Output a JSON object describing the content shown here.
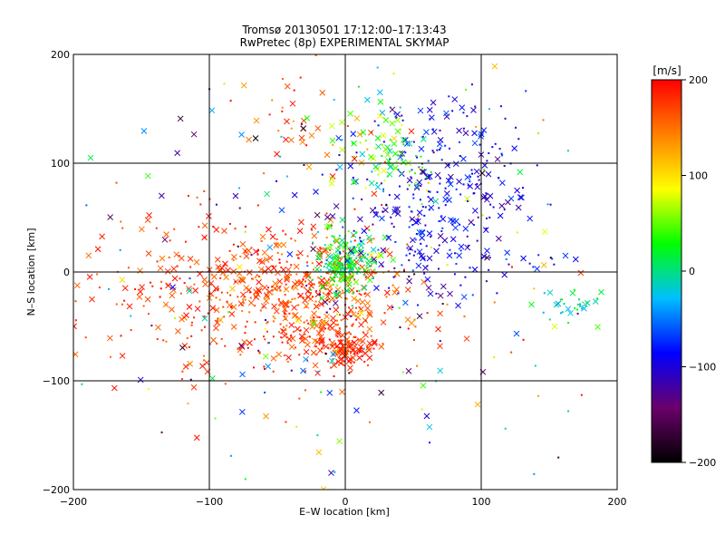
{
  "chart_data": {
    "type": "scatter",
    "title": "Tromsø 20130501 17:12:00–17:13:43",
    "subtitle": "RwPretec (8p) EXPERIMENTAL SKYMAP",
    "xlabel": "E–W location [km]",
    "ylabel": "N–S location [km]",
    "xlim": [
      -200,
      200
    ],
    "ylim": [
      -200,
      200
    ],
    "xticks": [
      "-200",
      "-100",
      "0",
      "100",
      "200"
    ],
    "yticks": [
      "-200",
      "-100",
      "0",
      "100",
      "200"
    ],
    "grid": true,
    "grid_lines": [
      -100,
      0,
      100
    ],
    "colorbar": {
      "unit": "[m/s]",
      "range": [
        -200,
        200
      ],
      "ticks": [
        "200",
        "100",
        "0",
        "-100",
        "-200"
      ],
      "colormap": [
        "#000000",
        "#6a006a",
        "#0000ff",
        "#00bfff",
        "#00ff00",
        "#ffff00",
        "#ff8000",
        "#ff0000"
      ]
    },
    "markers": {
      "cross": "×",
      "dot": "·"
    },
    "clusters": [
      {
        "cx": -30,
        "cy": -20,
        "sx": 40,
        "sy": 30,
        "n": 520,
        "vmin": 140,
        "vmax": 200
      },
      {
        "cx": -120,
        "cy": -20,
        "sx": 50,
        "sy": 40,
        "n": 160,
        "vmin": 150,
        "vmax": 200
      },
      {
        "cx": 0,
        "cy": -70,
        "sx": 12,
        "sy": 10,
        "n": 120,
        "vmin": 160,
        "vmax": 200
      },
      {
        "cx": 0,
        "cy": 10,
        "sx": 12,
        "sy": 15,
        "n": 170,
        "vmin": -20,
        "vmax": 60
      },
      {
        "cx": 65,
        "cy": 50,
        "sx": 35,
        "sy": 40,
        "n": 260,
        "vmin": -130,
        "vmax": -60
      },
      {
        "cx": 80,
        "cy": 110,
        "sx": 25,
        "sy": 25,
        "n": 80,
        "vmin": -120,
        "vmax": -60
      },
      {
        "cx": 30,
        "cy": 110,
        "sx": 20,
        "sy": 25,
        "n": 90,
        "vmin": -40,
        "vmax": 90
      },
      {
        "cx": 165,
        "cy": -30,
        "sx": 12,
        "sy": 10,
        "n": 30,
        "vmin": -40,
        "vmax": 30
      },
      {
        "cx": -30,
        "cy": 130,
        "sx": 30,
        "sy": 25,
        "n": 40,
        "vmin": 120,
        "vmax": 200
      },
      {
        "cx": 0,
        "cy": 0,
        "sx": 110,
        "sy": 100,
        "n": 260,
        "vmin": -200,
        "vmax": 200
      }
    ]
  }
}
